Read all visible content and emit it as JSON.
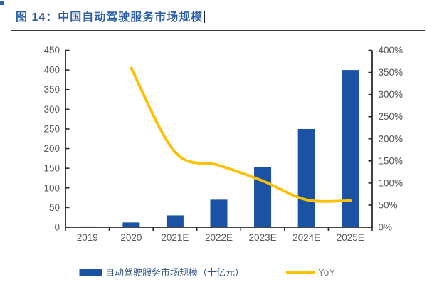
{
  "header": {
    "title": "图 14：中国自动驾驶服务市场规模",
    "title_color": "#2e5ea6",
    "underline_color": "#33373b"
  },
  "chart_data": {
    "type": "combo-bar-line",
    "title": "中国自动驾驶服务市场规模",
    "categories": [
      "2019",
      "2020",
      "2021E",
      "2022E",
      "2023E",
      "2024E",
      "2025E"
    ],
    "series": [
      {
        "name": "自动驾驶服务市场规模（十亿元）",
        "type": "bar",
        "axis": "left",
        "color": "#1b52a3",
        "values": [
          2,
          12,
          30,
          70,
          153,
          250,
          400
        ]
      },
      {
        "name": "YoY",
        "type": "line",
        "axis": "right",
        "color": "#ffc000",
        "values_percent": [
          null,
          360,
          170,
          140,
          105,
          62,
          60
        ]
      }
    ],
    "left_axis": {
      "min": 0,
      "max": 450,
      "step": 50,
      "ticks": [
        "0",
        "50",
        "100",
        "150",
        "200",
        "250",
        "300",
        "350",
        "400",
        "450"
      ]
    },
    "right_axis": {
      "min": 0,
      "max": 400,
      "step": 50,
      "suffix": "%",
      "ticks": [
        "0%",
        "50%",
        "100%",
        "150%",
        "200%",
        "250%",
        "300%",
        "350%",
        "400%"
      ]
    },
    "axis_color": "#2b2b2b",
    "tick_label_color": "#595959",
    "grid": "off",
    "legend": {
      "position": "bottom",
      "items": [
        {
          "label": "自动驾驶服务市场规模（十亿元）",
          "swatch": "rect",
          "color": "#1b52a3",
          "label_color": "#33567f"
        },
        {
          "label": "YoY",
          "swatch": "line",
          "color": "#ffc000",
          "label_color": "#7f7f7f"
        }
      ]
    }
  }
}
